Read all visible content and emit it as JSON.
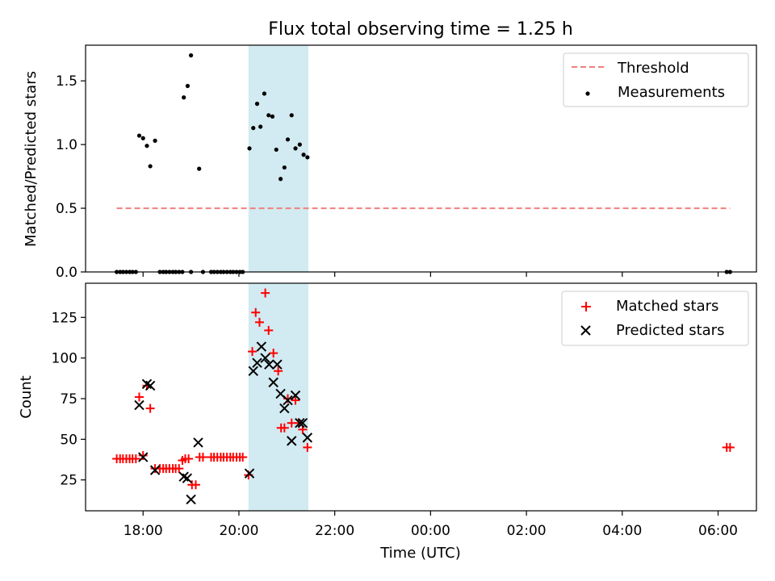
{
  "title": "Flux total observing time = 1.25 h",
  "xlabel": "Time (UTC)",
  "x_ticks": [
    "18:00",
    "20:00",
    "22:00",
    "00:00",
    "02:00",
    "04:00",
    "06:00"
  ],
  "x_tick_hours": [
    18,
    20,
    22,
    24,
    26,
    28,
    30
  ],
  "xlim_hours": [
    16.8,
    30.8
  ],
  "shaded_span_hours": [
    20.2,
    21.45
  ],
  "colors": {
    "threshold": "#f08080",
    "matched": "#ff0000",
    "predicted": "#000000",
    "span": "#add8e6"
  },
  "chart_data": [
    {
      "type": "scatter",
      "ylabel": "Matched/Predicted stars",
      "ylim": [
        0,
        1.78
      ],
      "y_ticks": [
        0.0,
        0.5,
        1.0,
        1.5
      ],
      "y_tick_labels": [
        "0.0",
        "0.5",
        "1.0",
        "1.5"
      ],
      "legend_position": "top-right",
      "threshold": {
        "name": "Threshold",
        "value": 0.5,
        "x_range": [
          17.45,
          30.25
        ]
      },
      "series": [
        {
          "name": "Measurements",
          "points": [
            [
              17.45,
              0
            ],
            [
              17.52,
              0
            ],
            [
              17.58,
              0
            ],
            [
              17.65,
              0
            ],
            [
              17.72,
              0
            ],
            [
              17.78,
              0
            ],
            [
              17.85,
              0
            ],
            [
              17.92,
              1.07
            ],
            [
              18.0,
              1.05
            ],
            [
              18.08,
              0.99
            ],
            [
              18.15,
              0.83
            ],
            [
              18.25,
              1.03
            ],
            [
              18.35,
              0
            ],
            [
              18.42,
              0
            ],
            [
              18.48,
              0
            ],
            [
              18.55,
              0
            ],
            [
              18.62,
              0
            ],
            [
              18.68,
              0
            ],
            [
              18.75,
              0
            ],
            [
              18.82,
              0
            ],
            [
              18.85,
              1.37
            ],
            [
              18.93,
              1.46
            ],
            [
              19.0,
              1.7
            ],
            [
              19.17,
              0.81
            ],
            [
              19.0,
              0
            ],
            [
              19.25,
              0
            ],
            [
              19.42,
              0
            ],
            [
              19.48,
              0
            ],
            [
              19.55,
              0
            ],
            [
              19.62,
              0
            ],
            [
              19.68,
              0
            ],
            [
              19.75,
              0
            ],
            [
              19.82,
              0
            ],
            [
              19.88,
              0
            ],
            [
              19.95,
              0
            ],
            [
              20.02,
              0
            ],
            [
              20.08,
              0
            ],
            [
              20.22,
              0.97
            ],
            [
              20.3,
              1.13
            ],
            [
              20.38,
              1.32
            ],
            [
              20.45,
              1.14
            ],
            [
              20.53,
              1.4
            ],
            [
              20.62,
              1.23
            ],
            [
              20.7,
              1.22
            ],
            [
              20.78,
              0.96
            ],
            [
              20.87,
              0.73
            ],
            [
              20.95,
              0.82
            ],
            [
              21.02,
              1.04
            ],
            [
              21.1,
              1.23
            ],
            [
              21.18,
              0.97
            ],
            [
              21.27,
              1.0
            ],
            [
              21.35,
              0.92
            ],
            [
              21.43,
              0.9
            ],
            [
              30.18,
              0
            ],
            [
              30.25,
              0
            ]
          ]
        }
      ]
    },
    {
      "type": "scatter",
      "ylabel": "Count",
      "ylim": [
        6,
        146
      ],
      "y_ticks": [
        25,
        50,
        75,
        100,
        125
      ],
      "y_tick_labels": [
        "25",
        "50",
        "75",
        "100",
        "125"
      ],
      "legend_position": "top-right",
      "series": [
        {
          "name": "Matched stars",
          "marker": "+",
          "points": [
            [
              17.45,
              38
            ],
            [
              17.52,
              38
            ],
            [
              17.58,
              38
            ],
            [
              17.65,
              38
            ],
            [
              17.72,
              38
            ],
            [
              17.78,
              38
            ],
            [
              17.85,
              38
            ],
            [
              17.92,
              76
            ],
            [
              18.0,
              40
            ],
            [
              18.08,
              83
            ],
            [
              18.15,
              69
            ],
            [
              18.25,
              32
            ],
            [
              18.35,
              32
            ],
            [
              18.42,
              32
            ],
            [
              18.48,
              32
            ],
            [
              18.55,
              32
            ],
            [
              18.62,
              32
            ],
            [
              18.68,
              32
            ],
            [
              18.75,
              32
            ],
            [
              18.82,
              37
            ],
            [
              18.88,
              38
            ],
            [
              18.95,
              38
            ],
            [
              19.02,
              22
            ],
            [
              19.1,
              22
            ],
            [
              19.18,
              39
            ],
            [
              19.25,
              39
            ],
            [
              19.42,
              39
            ],
            [
              19.48,
              39
            ],
            [
              19.55,
              39
            ],
            [
              19.62,
              39
            ],
            [
              19.68,
              39
            ],
            [
              19.75,
              39
            ],
            [
              19.82,
              39
            ],
            [
              19.88,
              39
            ],
            [
              19.95,
              39
            ],
            [
              20.02,
              39
            ],
            [
              20.08,
              39
            ],
            [
              20.2,
              28
            ],
            [
              20.28,
              104
            ],
            [
              20.35,
              128
            ],
            [
              20.43,
              122
            ],
            [
              20.55,
              140
            ],
            [
              20.62,
              117
            ],
            [
              20.72,
              103
            ],
            [
              20.82,
              92
            ],
            [
              20.88,
              57
            ],
            [
              20.95,
              57
            ],
            [
              21.02,
              75
            ],
            [
              21.1,
              60
            ],
            [
              21.18,
              74
            ],
            [
              21.25,
              60
            ],
            [
              21.33,
              56
            ],
            [
              21.43,
              45
            ],
            [
              30.18,
              45
            ],
            [
              30.25,
              45
            ]
          ]
        },
        {
          "name": "Predicted stars",
          "marker": "x",
          "points": [
            [
              17.92,
              71
            ],
            [
              18.0,
              39
            ],
            [
              18.08,
              84
            ],
            [
              18.15,
              83
            ],
            [
              18.25,
              31
            ],
            [
              18.85,
              27
            ],
            [
              18.92,
              26
            ],
            [
              19.0,
              13
            ],
            [
              19.15,
              48
            ],
            [
              20.22,
              29
            ],
            [
              20.3,
              92
            ],
            [
              20.38,
              97
            ],
            [
              20.47,
              107
            ],
            [
              20.55,
              100
            ],
            [
              20.63,
              96
            ],
            [
              20.72,
              85
            ],
            [
              20.8,
              96
            ],
            [
              20.87,
              78
            ],
            [
              20.95,
              69
            ],
            [
              21.02,
              74
            ],
            [
              21.1,
              49
            ],
            [
              21.18,
              77
            ],
            [
              21.27,
              60
            ],
            [
              21.33,
              60
            ],
            [
              21.43,
              51
            ]
          ]
        }
      ]
    }
  ]
}
